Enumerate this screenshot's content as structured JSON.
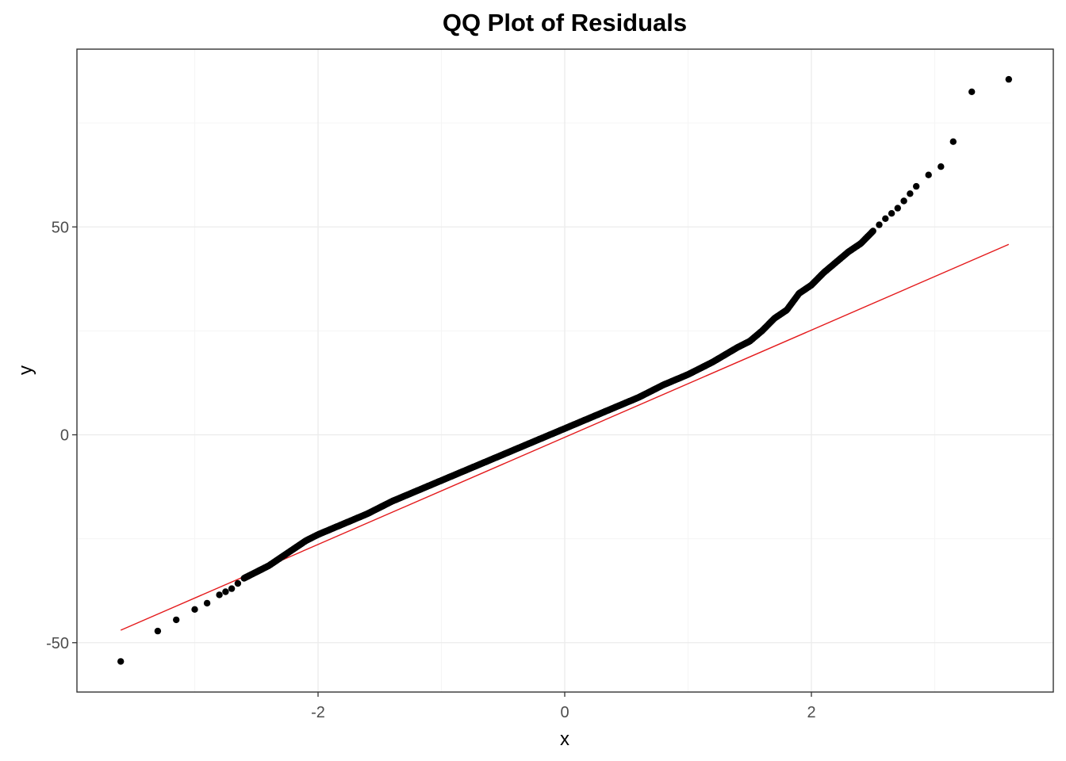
{
  "chart_data": {
    "type": "scatter",
    "title": "QQ Plot of Residuals",
    "xlabel": "x",
    "ylabel": "y",
    "xlim": [
      -3.6,
      3.6
    ],
    "ylim": [
      -62,
      92
    ],
    "x_ticks": [
      -2,
      0,
      2
    ],
    "x_tick_labels": [
      "-2",
      "0",
      "2"
    ],
    "y_ticks": [
      -50,
      0,
      50
    ],
    "y_tick_labels": [
      "-50",
      "0",
      "50"
    ],
    "grid": true,
    "legend": "none",
    "colors": {
      "points": "#000000",
      "reference_line": "#e41a1c",
      "panel_border": "#333333",
      "grid_major": "#ebebeb",
      "grid_minor": "#f5f5f5"
    },
    "reference_line": {
      "x": [
        -3.6,
        3.6
      ],
      "y": [
        -47,
        45.8
      ]
    },
    "anchors": {
      "x": [
        -3.6,
        -3.3,
        -3.15,
        -3.0,
        -2.9,
        -2.8,
        -2.7,
        -2.6,
        -2.5,
        -2.4,
        -2.3,
        -2.2,
        -2.1,
        -2.0,
        -1.8,
        -1.6,
        -1.4,
        -1.2,
        -1.0,
        -0.8,
        -0.6,
        -0.4,
        -0.2,
        0.0,
        0.2,
        0.4,
        0.6,
        0.8,
        1.0,
        1.2,
        1.4,
        1.5,
        1.6,
        1.7,
        1.8,
        1.9,
        2.0,
        2.1,
        2.2,
        2.3,
        2.4,
        2.5,
        2.6,
        2.7,
        2.8,
        2.9,
        3.05,
        3.15,
        3.3,
        3.6
      ],
      "y": [
        -54.5,
        -47,
        -44.5,
        -42,
        -40.5,
        -38.5,
        -37,
        -34.5,
        -33,
        -31.5,
        -29.5,
        -27.5,
        -25.5,
        -24,
        -21.5,
        -19,
        -16,
        -13.5,
        -11,
        -8.5,
        -6,
        -3.5,
        -1,
        1.5,
        4,
        6.5,
        9,
        12,
        14.5,
        17.5,
        21,
        22.5,
        25,
        28,
        30,
        34,
        36,
        39,
        41.5,
        44,
        46,
        49,
        52,
        54.5,
        58,
        61.5,
        64.5,
        70.5,
        82.5,
        85.5
      ]
    },
    "outliers": [
      {
        "x": -3.6,
        "y": -54.5
      },
      {
        "x": -3.3,
        "y": -47.2
      },
      {
        "x": -3.15,
        "y": -44.5
      },
      {
        "x": 3.05,
        "y": 64.5
      },
      {
        "x": 3.15,
        "y": 70.5
      },
      {
        "x": 3.3,
        "y": 82.5
      },
      {
        "x": 3.6,
        "y": 85.5
      }
    ]
  }
}
